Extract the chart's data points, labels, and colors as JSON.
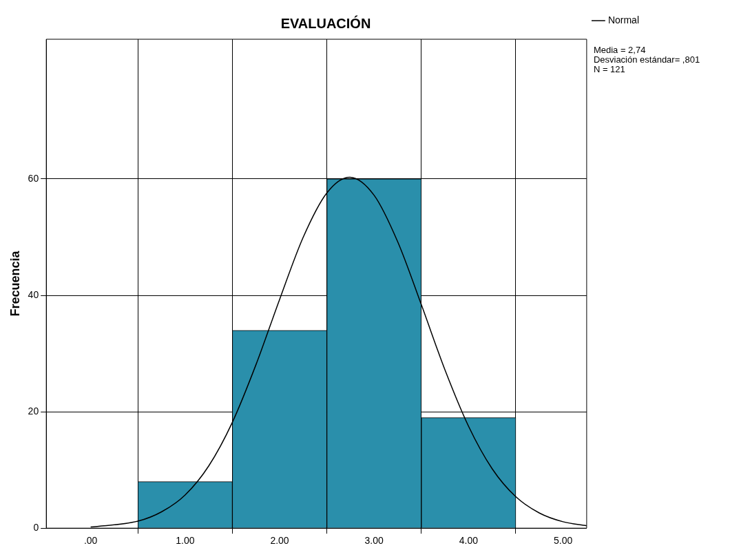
{
  "chart_data": {
    "type": "histogram",
    "title": "EVALUACIÓN",
    "ylabel": "Frecuencia",
    "bins": [
      0.5,
      1.5,
      2.5,
      3.5,
      4.5
    ],
    "values": [
      8,
      34,
      60,
      19
    ],
    "color": "#2a8fab",
    "series": [
      {
        "name": "Normal",
        "type": "line",
        "color": "#000000",
        "x": [
          0,
          0.5,
          0.75,
          1,
          1.25,
          1.5,
          1.75,
          2,
          2.25,
          2.5,
          2.74,
          3,
          3.25,
          3.5,
          3.75,
          4,
          4.25,
          4.5,
          4.75,
          5,
          5.25
        ],
        "values": [
          0.2,
          1.2,
          2.8,
          5.7,
          10.7,
          18.2,
          28.1,
          39.3,
          50,
          57.6,
          60.3,
          57.2,
          49.2,
          38.4,
          27.2,
          17.5,
          10.2,
          5.4,
          2.6,
          1.1,
          0.4
        ]
      }
    ],
    "xlim": [
      -0.47,
      5.25
    ],
    "xticks": [
      {
        "value": 0,
        "label": ".00"
      },
      {
        "value": 1,
        "label": "1.00"
      },
      {
        "value": 2,
        "label": "2.00"
      },
      {
        "value": 3,
        "label": "3.00"
      },
      {
        "value": 4,
        "label": "4.00"
      },
      {
        "value": 5,
        "label": "5.00"
      }
    ],
    "ylim": [
      0,
      84
    ],
    "yticks": [
      0,
      20,
      40,
      60
    ],
    "grid": true,
    "legend": "top right",
    "marker": "none",
    "annotations": [
      "Media = 2,74",
      "Desviación estándar= ,801",
      "N = 121"
    ]
  }
}
